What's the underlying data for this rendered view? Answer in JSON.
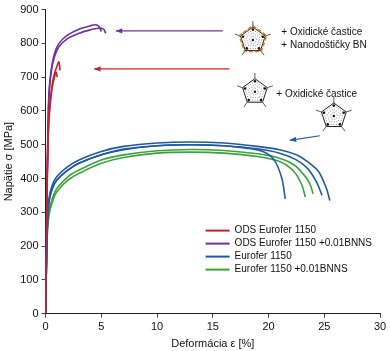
{
  "chart_data": {
    "type": "line",
    "x_label": "Deformácia ε [%]",
    "y_label": "Napätie σ [MPa]",
    "xlim": [
      0,
      30
    ],
    "xticks": [
      0,
      5,
      10,
      15,
      20,
      25,
      30
    ],
    "ylim": [
      0,
      900
    ],
    "yticks": [
      0,
      100,
      200,
      300,
      400,
      500,
      600,
      700,
      800,
      900
    ],
    "grid": false,
    "legend": "lower right",
    "annotations": [
      {
        "lines": [
          "+ Oxidické častice",
          "+ Nanodoštičky BN"
        ]
      },
      {
        "lines": [
          "+ Oxidické častice"
        ]
      }
    ],
    "series": [
      {
        "name": "ODS Eurofer 1150",
        "color": "#c8202c",
        "x": [
          0,
          0.1,
          0.2,
          0.3,
          0.45,
          0.6,
          0.8,
          1.0,
          1.2,
          1.3
        ],
        "values": [
          0,
          300,
          480,
          580,
          640,
          680,
          710,
          730,
          745,
          720
        ]
      },
      {
        "name": "ODS Eurofer 1150",
        "color": "#c8202c",
        "x": [
          0,
          0.1,
          0.2,
          0.3,
          0.45,
          0.6,
          0.8,
          0.95,
          1.05
        ],
        "values": [
          0,
          290,
          470,
          570,
          630,
          670,
          700,
          715,
          700
        ]
      },
      {
        "name": "ODS Eurofer 1150 +0.01BNNS",
        "color": "#7030a0",
        "x": [
          0,
          0.1,
          0.2,
          0.3,
          0.5,
          0.8,
          1.2,
          2,
          3,
          4,
          4.5,
          4.8,
          5.0
        ],
        "values": [
          0,
          310,
          520,
          650,
          720,
          770,
          800,
          825,
          842,
          852,
          855,
          850,
          835
        ]
      },
      {
        "name": "ODS Eurofer 1150 +0.01BNNS",
        "color": "#7030a0",
        "x": [
          0,
          0.1,
          0.2,
          0.3,
          0.5,
          0.8,
          1.2,
          2,
          3,
          4,
          4.7,
          5.2,
          5.4
        ],
        "values": [
          0,
          300,
          510,
          640,
          715,
          760,
          790,
          815,
          830,
          840,
          845,
          842,
          830
        ]
      },
      {
        "name": "Eurofer 1150",
        "color": "#1f5aa6",
        "x": [
          0,
          0.15,
          0.3,
          0.6,
          1,
          2,
          3,
          5,
          7,
          10,
          13,
          16,
          18,
          19.5,
          20.5,
          21.2,
          21.5
        ],
        "values": [
          0,
          250,
          330,
          370,
          395,
          425,
          445,
          470,
          485,
          497,
          500,
          497,
          490,
          480,
          455,
          400,
          340
        ]
      },
      {
        "name": "Eurofer 1150",
        "color": "#1f5aa6",
        "x": [
          0,
          0.15,
          0.3,
          0.6,
          1,
          2,
          3,
          5,
          7,
          10,
          13,
          16,
          19,
          21,
          22.5,
          23.5,
          24.5,
          25.2,
          25.5
        ],
        "values": [
          0,
          250,
          340,
          380,
          405,
          435,
          455,
          480,
          495,
          505,
          508,
          505,
          495,
          485,
          470,
          450,
          420,
          370,
          335
        ]
      },
      {
        "name": "Eurofer 1150",
        "color": "#1f5aa6",
        "x": [
          0,
          0.15,
          0.3,
          0.6,
          1,
          2,
          3,
          5,
          7,
          10,
          13,
          16,
          19,
          21,
          22.5,
          23.5,
          24.3,
          24.8
        ],
        "values": [
          0,
          245,
          330,
          370,
          395,
          425,
          445,
          470,
          487,
          497,
          500,
          497,
          488,
          475,
          455,
          430,
          390,
          350
        ]
      },
      {
        "name": "Eurofer 1150 +0.01BNNS",
        "color": "#3aa43a",
        "x": [
          0,
          0.15,
          0.3,
          0.6,
          1,
          2,
          3,
          5,
          7,
          10,
          13,
          16,
          19,
          21,
          22.3,
          23,
          23.3
        ],
        "values": [
          0,
          230,
          290,
          330,
          360,
          395,
          415,
          445,
          462,
          475,
          478,
          475,
          465,
          450,
          420,
          380,
          345
        ]
      },
      {
        "name": "Eurofer 1150 +0.01BNNS",
        "color": "#3aa43a",
        "x": [
          0,
          0.15,
          0.3,
          0.6,
          1,
          2,
          3,
          5,
          7,
          10,
          13,
          16,
          19,
          21,
          22.3,
          23.2,
          23.7,
          24
        ],
        "values": [
          0,
          235,
          300,
          340,
          370,
          405,
          425,
          455,
          470,
          482,
          486,
          483,
          473,
          460,
          440,
          410,
          385,
          355
        ]
      }
    ]
  }
}
